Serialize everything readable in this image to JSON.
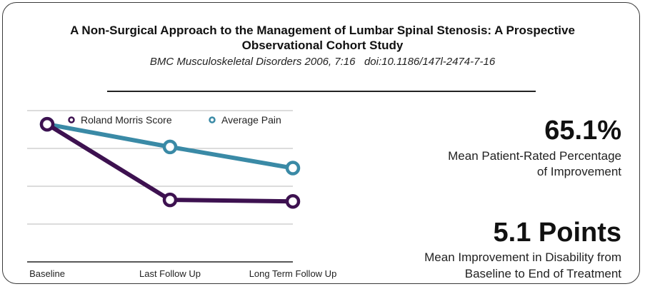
{
  "header": {
    "title_line1": "A Non-Surgical Approach to the Management of Lumbar Spinal Stenosis: A Prospective",
    "title_line2": "Observational Cohort Study",
    "citation": "BMC Musculoskeletal Disorders 2006, 7:16   doi:10.1186/147l-2474-7-16"
  },
  "stats": [
    {
      "value": "65.1%",
      "desc_line1": "Mean Patient-Rated Percentage",
      "desc_line2": "of Improvement"
    },
    {
      "value": "5.1 Points",
      "desc_line1": "Mean Improvement in Disability from",
      "desc_line2": "Baseline to End of Treatment"
    }
  ],
  "chart_data": {
    "type": "line",
    "categories": [
      "Baseline",
      "Last Follow Up",
      "Long Term Follow Up"
    ],
    "series": [
      {
        "name": "Roland Morris Score",
        "color": "#3d1150",
        "values": [
          9.1,
          4.1,
          4.0
        ]
      },
      {
        "name": "Average Pain",
        "color": "#3a8aa6",
        "values": [
          9.1,
          7.6,
          6.2
        ]
      }
    ],
    "ylim": [
      0,
      10
    ],
    "grid": true,
    "legend": "top-left",
    "title": "",
    "xlabel": "",
    "ylabel": ""
  }
}
